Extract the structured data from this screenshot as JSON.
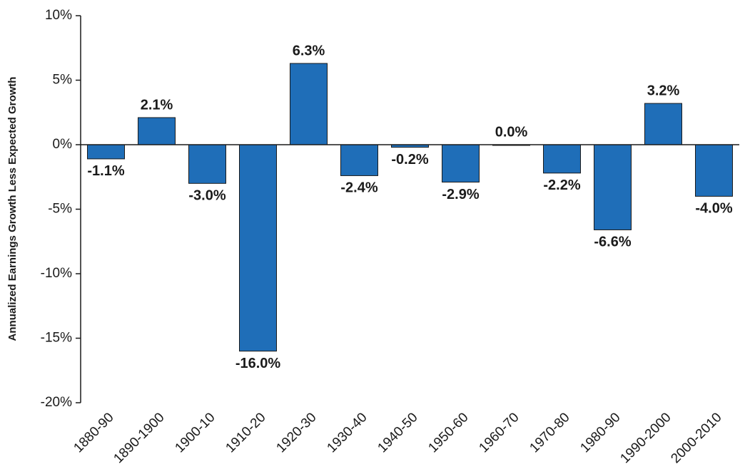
{
  "chart_data": {
    "type": "bar",
    "y_label": "Annualized Earnings Growth Less Expected Growth",
    "categories": [
      "1880-90",
      "1890-1900",
      "1900-10",
      "1910-20",
      "1920-30",
      "1930-40",
      "1940-50",
      "1950-60",
      "1960-70",
      "1970-80",
      "1980-90",
      "1990-2000",
      "2000-2010"
    ],
    "values": [
      -1.1,
      2.1,
      -3.0,
      -16.0,
      6.3,
      -2.4,
      -0.2,
      -2.9,
      0.0,
      -2.2,
      -6.6,
      3.2,
      -4.0
    ],
    "value_labels": [
      "-1.1%",
      "2.1%",
      "-3.0%",
      "-16.0%",
      "6.3%",
      "-2.4%",
      "-0.2%",
      "-2.9%",
      "0.0%",
      "-2.2%",
      "-6.6%",
      "3.2%",
      "-4.0%"
    ],
    "color": "#1f6eb8",
    "ylim": [
      -20,
      10
    ],
    "yticks": [
      {
        "value": -20,
        "label": "-20%"
      },
      {
        "value": -15,
        "label": "-15%"
      },
      {
        "value": -10,
        "label": "-10%"
      },
      {
        "value": -5,
        "label": "-5%"
      },
      {
        "value": 0,
        "label": "0%"
      },
      {
        "value": 5,
        "label": "5%"
      },
      {
        "value": 10,
        "label": "10%"
      }
    ],
    "grid": false
  }
}
